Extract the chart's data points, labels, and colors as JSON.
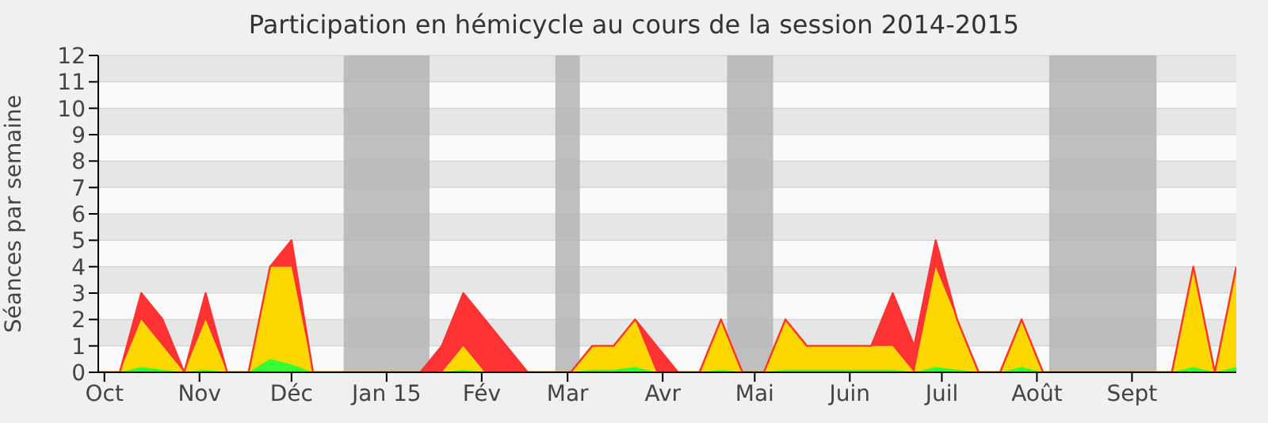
{
  "chart_data": {
    "type": "area",
    "title": "Participation en hémicycle au cours de la session 2014-2015",
    "ylabel": "Séances par semaine",
    "x": [
      "2014-09-29",
      "2014-10-06",
      "2014-10-13",
      "2014-10-20",
      "2014-10-27",
      "2014-11-03",
      "2014-11-10",
      "2014-11-17",
      "2014-11-24",
      "2014-12-01",
      "2014-12-08",
      "2014-12-15",
      "2014-12-22",
      "2014-12-29",
      "2015-01-05",
      "2015-01-12",
      "2015-01-19",
      "2015-01-26",
      "2015-02-02",
      "2015-02-09",
      "2015-02-16",
      "2015-02-23",
      "2015-03-02",
      "2015-03-09",
      "2015-03-16",
      "2015-03-23",
      "2015-03-30",
      "2015-04-06",
      "2015-04-13",
      "2015-04-20",
      "2015-04-27",
      "2015-05-04",
      "2015-05-11",
      "2015-05-18",
      "2015-05-25",
      "2015-06-01",
      "2015-06-08",
      "2015-06-15",
      "2015-06-22",
      "2015-06-29",
      "2015-07-06",
      "2015-07-13",
      "2015-07-20",
      "2015-07-27",
      "2015-08-03",
      "2015-08-10",
      "2015-08-17",
      "2015-08-24",
      "2015-08-31",
      "2015-09-07",
      "2015-09-14",
      "2015-09-21",
      "2015-09-28",
      "2015-10-05"
    ],
    "stacked": true,
    "series": [
      {
        "color": "#33ff33",
        "values": [
          0,
          0,
          0.2,
          0.1,
          0,
          0.1,
          0,
          0,
          0.5,
          0.3,
          0,
          0,
          0,
          0,
          0,
          0,
          0,
          0.1,
          0,
          0,
          0,
          0,
          0,
          0.1,
          0.1,
          0.2,
          0,
          0,
          0,
          0.1,
          0,
          0,
          0.1,
          0.1,
          0.1,
          0.1,
          0.1,
          0.1,
          0,
          0.2,
          0.1,
          0,
          0,
          0.2,
          0,
          0,
          0,
          0,
          0,
          0,
          0,
          0.2,
          0,
          0.2
        ]
      },
      {
        "color": "#ffd700",
        "values": [
          0,
          0,
          1.8,
          0.9,
          0,
          1.9,
          0,
          0,
          3.5,
          3.7,
          0,
          0,
          0,
          0,
          0,
          0,
          0,
          0.9,
          0,
          0,
          0,
          0,
          0,
          0.9,
          0.9,
          1.8,
          0,
          0,
          0,
          1.9,
          0,
          0,
          1.9,
          0.9,
          0.9,
          0.9,
          0.9,
          0.9,
          0,
          3.8,
          1.9,
          0,
          0,
          1.8,
          0,
          0,
          0,
          0,
          0,
          0,
          0,
          3.8,
          0,
          3.8
        ]
      },
      {
        "color": "#ff3333",
        "values": [
          0,
          0,
          1,
          1,
          0,
          1,
          0,
          0,
          0,
          1,
          0,
          0,
          0,
          0,
          0,
          0,
          1,
          2,
          2,
          1,
          0,
          0,
          0,
          0,
          0,
          0,
          1,
          0,
          0,
          0,
          0,
          0,
          0,
          0,
          0,
          0,
          0,
          2,
          1,
          1,
          0,
          0,
          0,
          0,
          0,
          0,
          0,
          0,
          0,
          0,
          0,
          0,
          0,
          0
        ]
      }
    ],
    "xlim": [
      "2014-09-29",
      "2015-10-05"
    ],
    "xticks": [
      {
        "value": "2014-10-01",
        "label": "Oct"
      },
      {
        "value": "2014-11-01",
        "label": "Nov"
      },
      {
        "value": "2014-12-01",
        "label": "Déc"
      },
      {
        "value": "2015-01-01",
        "label": "Jan 15"
      },
      {
        "value": "2015-02-01",
        "label": "Fév"
      },
      {
        "value": "2015-03-01",
        "label": "Mar"
      },
      {
        "value": "2015-04-01",
        "label": "Avr"
      },
      {
        "value": "2015-05-01",
        "label": "Mai"
      },
      {
        "value": "2015-06-01",
        "label": "Juin"
      },
      {
        "value": "2015-07-01",
        "label": "Juil"
      },
      {
        "value": "2015-08-01",
        "label": "Août"
      },
      {
        "value": "2015-09-01",
        "label": "Sept"
      }
    ],
    "ylim": [
      0,
      12
    ],
    "yticks": [
      0,
      1,
      2,
      3,
      4,
      5,
      6,
      7,
      8,
      9,
      10,
      11,
      12
    ],
    "grid": "y",
    "bands": [
      {
        "axis": "x",
        "from": "2014-12-18",
        "to": "2015-01-15",
        "color": "#b4b4b4"
      },
      {
        "axis": "x",
        "from": "2015-02-25",
        "to": "2015-03-05",
        "color": "#b4b4b4"
      },
      {
        "axis": "x",
        "from": "2015-04-22",
        "to": "2015-05-07",
        "color": "#b4b4b4"
      },
      {
        "axis": "x",
        "from": "2015-08-05",
        "to": "2015-09-09",
        "color": "#b4b4b4"
      }
    ]
  }
}
